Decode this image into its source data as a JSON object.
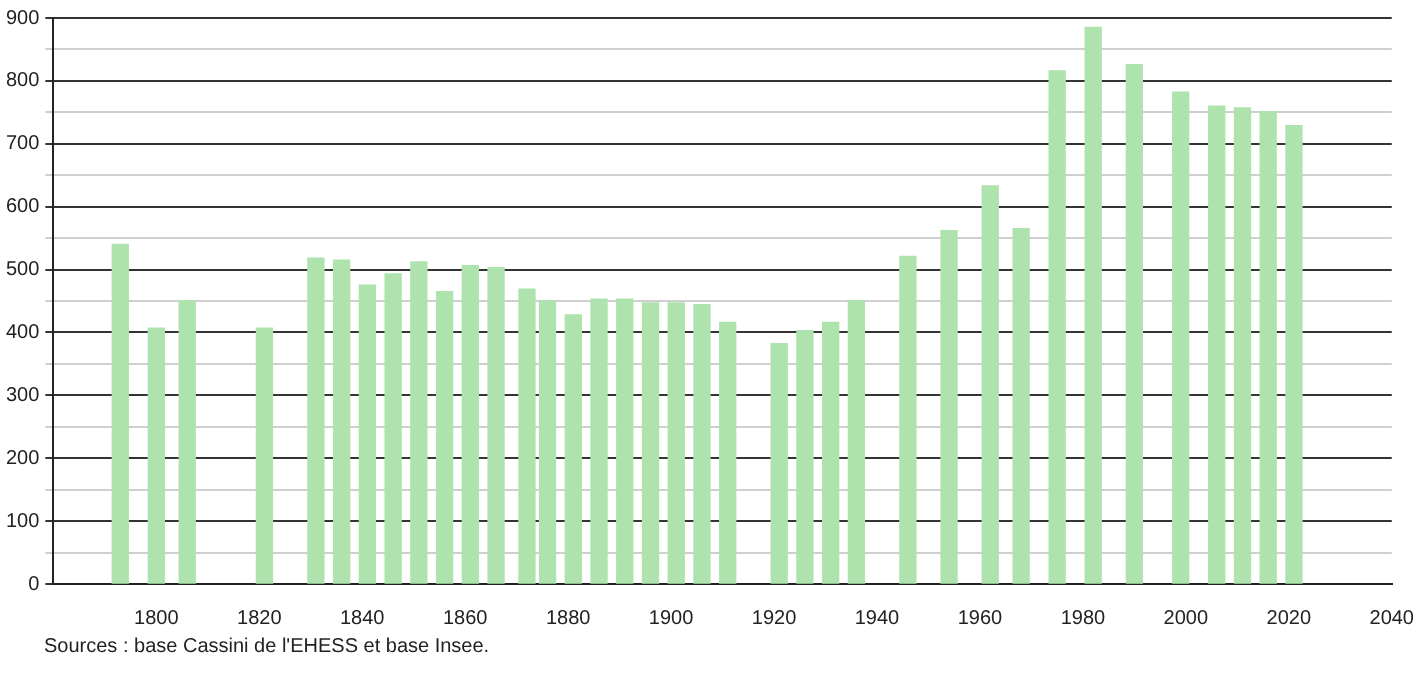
{
  "chart_data": {
    "type": "bar",
    "color": "#aee3ad",
    "x": [
      1793,
      1800,
      1806,
      1821,
      1831,
      1836,
      1841,
      1846,
      1851,
      1856,
      1861,
      1866,
      1872,
      1876,
      1881,
      1886,
      1891,
      1896,
      1901,
      1906,
      1911,
      1921,
      1926,
      1931,
      1936,
      1946,
      1954,
      1962,
      1968,
      1975,
      1982,
      1990,
      1999,
      2006,
      2011,
      2016,
      2021
    ],
    "values": [
      540,
      407,
      450,
      407,
      518,
      515,
      475,
      493,
      512,
      465,
      506,
      503,
      469,
      450,
      428,
      453,
      453,
      447,
      447,
      444,
      416,
      382,
      403,
      416,
      450,
      521,
      562,
      633,
      565,
      816,
      885,
      826,
      782,
      760,
      757,
      751,
      729
    ],
    "xlim": [
      1780,
      2040
    ],
    "xticks": [
      1800,
      1820,
      1840,
      1860,
      1880,
      1900,
      1920,
      1940,
      1960,
      1980,
      2000,
      2020,
      2040
    ],
    "ylim": [
      0,
      900
    ],
    "yticks": [
      0,
      {
        "value": 50,
        "label": null
      },
      100,
      {
        "value": 150,
        "label": null
      },
      200,
      {
        "value": 250,
        "label": null
      },
      300,
      {
        "value": 350,
        "label": null
      },
      400,
      {
        "value": 450,
        "label": null
      },
      500,
      {
        "value": 550,
        "label": null
      },
      600,
      {
        "value": 650,
        "label": null
      },
      700,
      {
        "value": 750,
        "label": null
      },
      800,
      {
        "value": 850,
        "label": null
      },
      900
    ],
    "grid": "y",
    "annotations": [
      "Sources : base Cassini de l'EHESS et base Insee."
    ]
  }
}
